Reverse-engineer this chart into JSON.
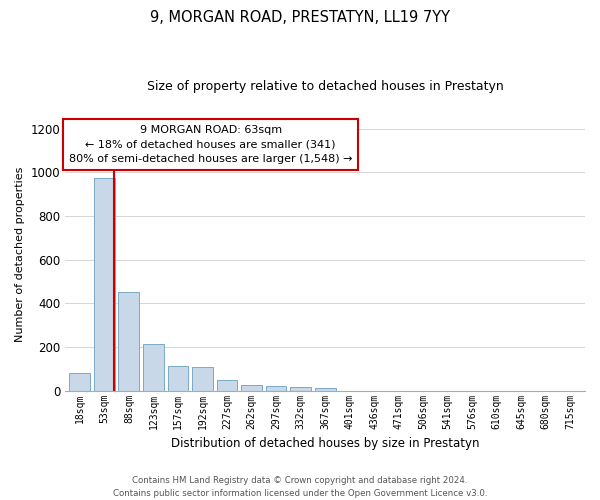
{
  "title": "9, MORGAN ROAD, PRESTATYN, LL19 7YY",
  "subtitle": "Size of property relative to detached houses in Prestatyn",
  "xlabel": "Distribution of detached houses by size in Prestatyn",
  "ylabel": "Number of detached properties",
  "footer_line1": "Contains HM Land Registry data © Crown copyright and database right 2024.",
  "footer_line2": "Contains public sector information licensed under the Open Government Licence v3.0.",
  "bar_labels": [
    "18sqm",
    "53sqm",
    "88sqm",
    "123sqm",
    "157sqm",
    "192sqm",
    "227sqm",
    "262sqm",
    "297sqm",
    "332sqm",
    "367sqm",
    "401sqm",
    "436sqm",
    "471sqm",
    "506sqm",
    "541sqm",
    "576sqm",
    "610sqm",
    "645sqm",
    "680sqm",
    "715sqm"
  ],
  "bar_values": [
    80,
    975,
    450,
    215,
    115,
    110,
    50,
    25,
    20,
    15,
    10,
    0,
    0,
    0,
    0,
    0,
    0,
    0,
    0,
    0,
    0
  ],
  "bar_color": "#c8d8e8",
  "bar_edge_color": "#7aaac8",
  "vline_color": "#cc0000",
  "vline_pos": 1.38,
  "annotation_text": "9 MORGAN ROAD: 63sqm\n← 18% of detached houses are smaller (341)\n80% of semi-detached houses are larger (1,548) →",
  "annotation_box_color": "#ffffff",
  "annotation_box_edge_color": "#cc0000",
  "ylim": [
    0,
    1250
  ],
  "yticks": [
    0,
    200,
    400,
    600,
    800,
    1000,
    1200
  ],
  "background_color": "#ffffff",
  "grid_color": "#d0d0d0"
}
